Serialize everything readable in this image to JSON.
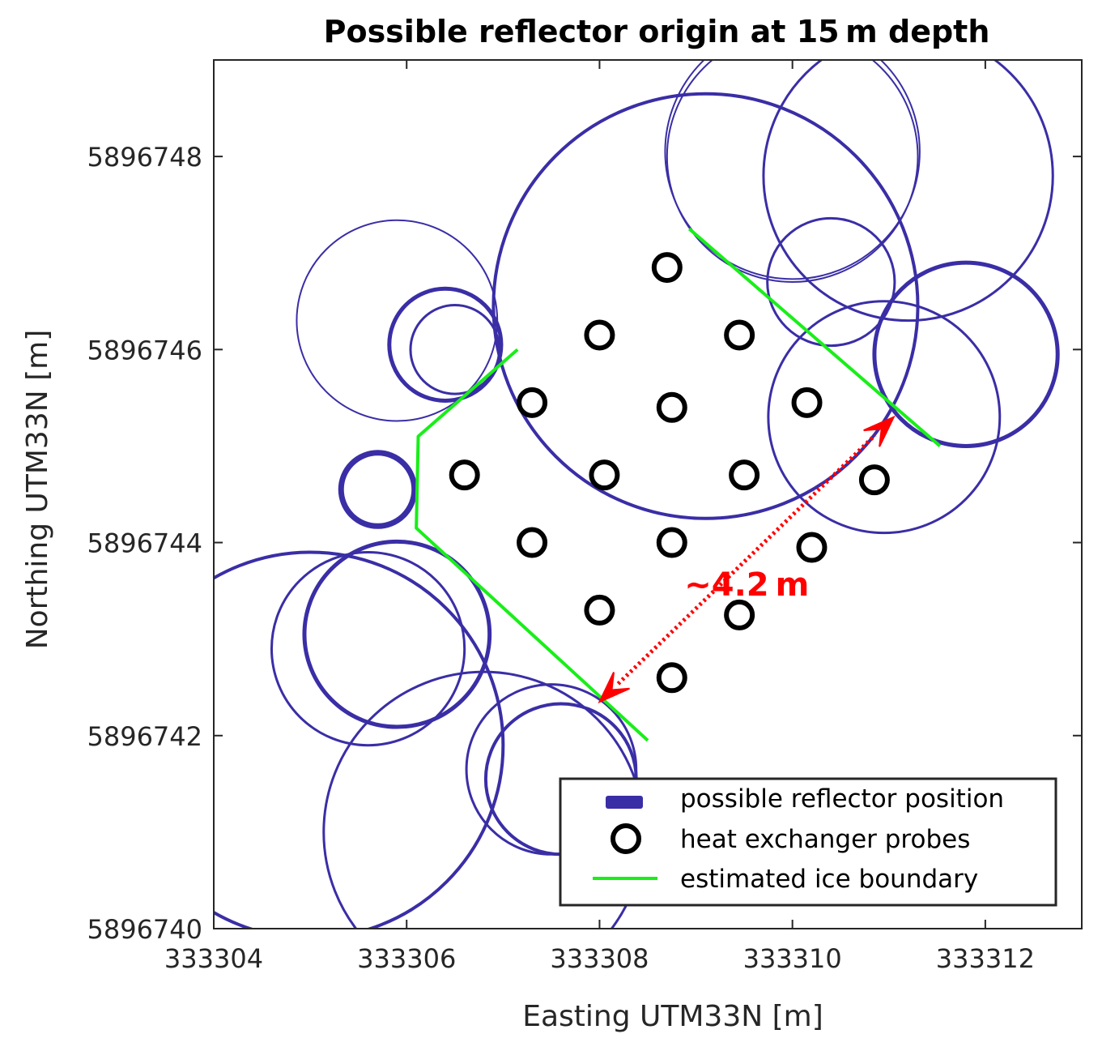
{
  "chart_data": {
    "type": "scatter",
    "title": "Possible reflector origin at 15 m depth",
    "xlabel": "Easting UTM33N [m]",
    "ylabel": "Northing UTM33N [m]",
    "xlim": [
      333304,
      333313
    ],
    "ylim": [
      5896740,
      5896749
    ],
    "xticks": [
      333304,
      333306,
      333308,
      333310,
      333312
    ],
    "yticks": [
      5896740,
      5896742,
      5896744,
      5896746,
      5896748
    ],
    "grid": false,
    "legend_position": "bottom-right",
    "colors": {
      "reflector": "#3a2ea6",
      "probes": "#000000",
      "boundary": "#19ee19",
      "annotation": "#ff0000",
      "axis": "#262626"
    },
    "series": [
      {
        "name": "possible reflector position",
        "kind": "circles",
        "circles": [
          {
            "cx": 333305.9,
            "cy": 5896746.3,
            "r": 1.04,
            "w": 2
          },
          {
            "cx": 333306.4,
            "cy": 5896746.05,
            "r": 0.58,
            "w": 5
          },
          {
            "cx": 333306.5,
            "cy": 5896746.0,
            "r": 0.46,
            "w": 3
          },
          {
            "cx": 333305.7,
            "cy": 5896744.55,
            "r": 0.38,
            "w": 7
          },
          {
            "cx": 333305.0,
            "cy": 5896741.9,
            "r": 2.0,
            "w": 4
          },
          {
            "cx": 333305.9,
            "cy": 5896743.05,
            "r": 0.96,
            "w": 5
          },
          {
            "cx": 333305.6,
            "cy": 5896742.9,
            "r": 1.0,
            "w": 3
          },
          {
            "cx": 333306.8,
            "cy": 5896741.0,
            "r": 1.66,
            "w": 3
          },
          {
            "cx": 333307.5,
            "cy": 5896741.65,
            "r": 0.88,
            "w": 3
          },
          {
            "cx": 333307.6,
            "cy": 5896741.55,
            "r": 0.78,
            "w": 4
          },
          {
            "cx": 333310.0,
            "cy": 5896748.0,
            "r": 1.3,
            "w": 2
          },
          {
            "cx": 333310.0,
            "cy": 5896748.05,
            "r": 1.32,
            "w": 2
          },
          {
            "cx": 333311.2,
            "cy": 5896747.8,
            "r": 1.5,
            "w": 3
          },
          {
            "cx": 333311.8,
            "cy": 5896745.95,
            "r": 0.95,
            "w": 5
          },
          {
            "cx": 333310.4,
            "cy": 5896746.7,
            "r": 0.66,
            "w": 3
          },
          {
            "cx": 333310.95,
            "cy": 5896745.3,
            "r": 1.2,
            "w": 3
          },
          {
            "cx": 333309.1,
            "cy": 5896746.45,
            "r": 2.2,
            "w": 4
          }
        ]
      },
      {
        "name": "heat exchanger probes",
        "kind": "points",
        "x": [
          333308.7,
          333308.0,
          333309.45,
          333307.3,
          333308.75,
          333310.15,
          333306.6,
          333308.05,
          333309.5,
          333310.85,
          333307.3,
          333308.75,
          333310.2,
          333308.0,
          333309.45,
          333308.75
        ],
        "y": [
          5896746.85,
          5896746.15,
          5896746.15,
          5896745.45,
          5896745.4,
          5896745.45,
          5896744.7,
          5896744.7,
          5896744.7,
          5896744.65,
          5896744.0,
          5896744.0,
          5896743.95,
          5896743.3,
          5896743.25,
          5896742.6
        ]
      },
      {
        "name": "estimated ice boundary",
        "kind": "lines",
        "lines": [
          {
            "x": [
              333307.15,
              333306.12,
              333306.1,
              333308.5
            ],
            "y": [
              5896746.0,
              5896745.1,
              5896744.15,
              5896741.95
            ]
          },
          {
            "x": [
              333308.93,
              333311.53
            ],
            "y": [
              5896747.25,
              5896745.0
            ]
          }
        ]
      }
    ],
    "annotation": {
      "text": "~4.2 m",
      "arrow": {
        "x1": 333308.0,
        "y1": 5896742.35,
        "x2": 333311.05,
        "y2": 5896745.3
      },
      "text_x": 333308.88,
      "text_y": 5896743.45
    }
  }
}
